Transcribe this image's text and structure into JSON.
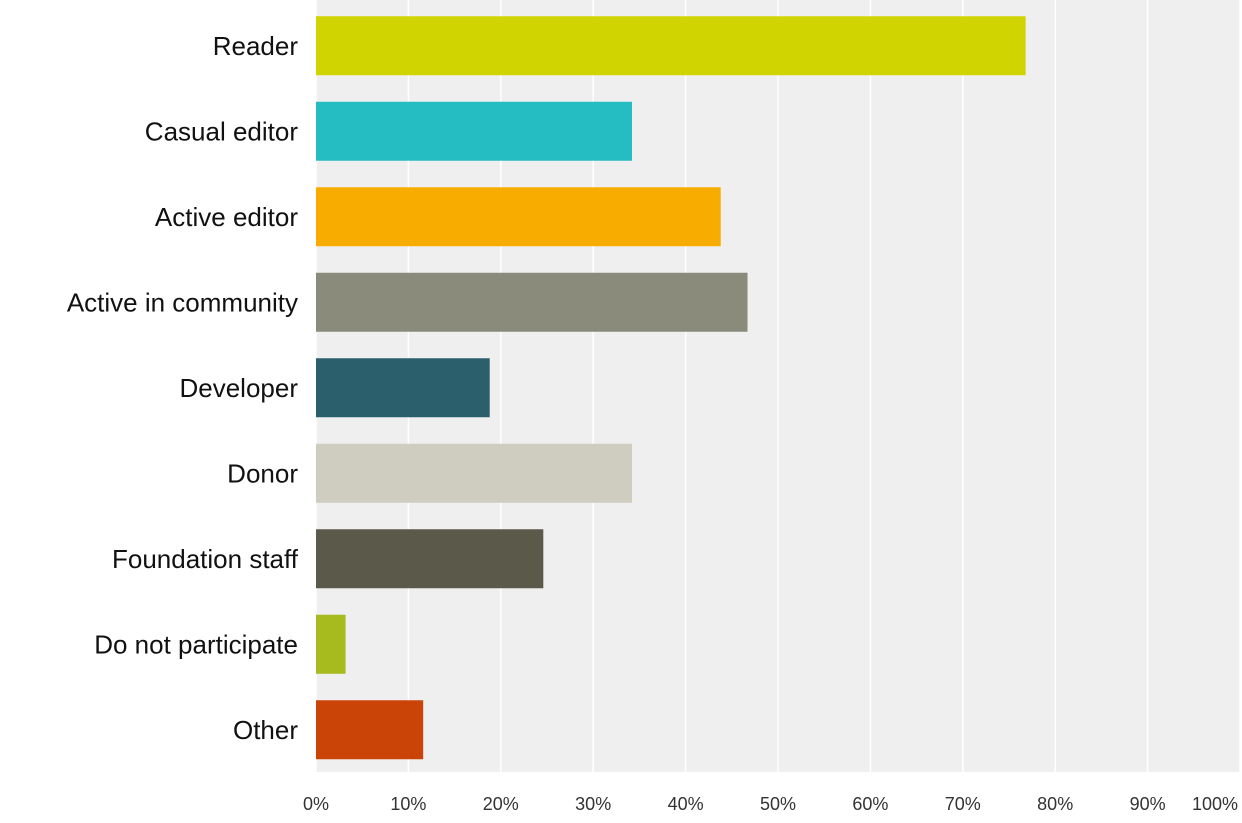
{
  "chart_data": {
    "type": "bar",
    "orientation": "horizontal",
    "categories": [
      "Reader",
      "Casual editor",
      "Active editor",
      "Active in community",
      "Developer",
      "Donor",
      "Foundation staff",
      "Do not participate",
      "Other"
    ],
    "values": [
      76.8,
      34.2,
      43.8,
      46.7,
      18.8,
      34.2,
      24.6,
      3.2,
      11.6
    ],
    "colors": [
      "#d0d400",
      "#26bdc2",
      "#f8ac00",
      "#8a8b7b",
      "#2b5f6c",
      "#cfcdbf",
      "#5b594a",
      "#a7bb1f",
      "#cb4407"
    ],
    "x_ticks": [
      "0%",
      "10%",
      "20%",
      "30%",
      "40%",
      "50%",
      "60%",
      "70%",
      "80%",
      "90%",
      "100%"
    ],
    "xlim": [
      0,
      100
    ],
    "unit": "%",
    "grid": true,
    "legend": "none",
    "title": "",
    "xlabel": "",
    "ylabel": ""
  },
  "style": {
    "plot_background": "#efefef",
    "grid_color": "#ffffff"
  }
}
